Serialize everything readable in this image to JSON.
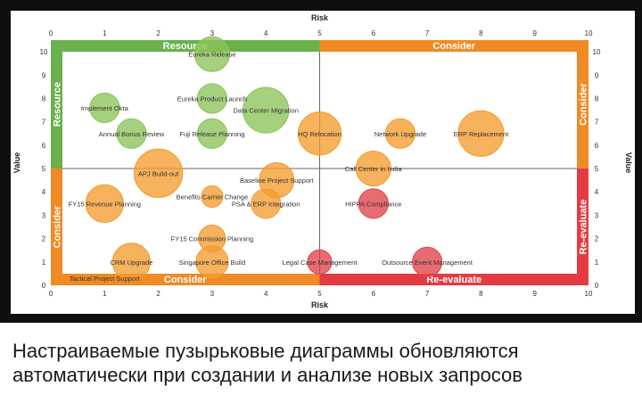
{
  "chart_data": {
    "type": "scatter",
    "subtype": "bubble",
    "xlabel": "Risk",
    "ylabel": "Value",
    "xlim": [
      0,
      10
    ],
    "ylim": [
      0,
      10.5
    ],
    "x_ticks": [
      "0",
      "1",
      "2",
      "3",
      "4",
      "5",
      "6",
      "7",
      "8",
      "9",
      "10"
    ],
    "y_ticks": [
      "0",
      "1",
      "2",
      "3",
      "4",
      "5",
      "6",
      "7",
      "8",
      "9",
      "10"
    ],
    "grid": false,
    "quadrant_dividers": {
      "x": 5,
      "y": 5
    },
    "zone_labels": {
      "top_left": "Resource",
      "top_right": "Consider",
      "bottom_left": "Consider",
      "bottom_right": "Re-evaluate",
      "left_upper": "Resource",
      "left_lower": "Consider",
      "right_upper": "Consider",
      "right_lower": "Re-evaluate"
    },
    "colors": {
      "green": "#8cc35a",
      "orange": "#f39c2e",
      "red": "#e0424a",
      "band_green": "#6ab04c",
      "band_orange": "#f08a24",
      "band_red": "#e33b41"
    },
    "points": [
      {
        "label": "Eureka Release",
        "x": 3.0,
        "y": 9.9,
        "size": 0.65,
        "color": "green"
      },
      {
        "label": "Eureka Product Launch",
        "x": 3.0,
        "y": 8.0,
        "size": 0.55,
        "color": "green"
      },
      {
        "label": "Implement Okta",
        "x": 1.0,
        "y": 7.6,
        "size": 0.55,
        "color": "green"
      },
      {
        "label": "Data Center Migration",
        "x": 4.0,
        "y": 7.5,
        "size": 0.85,
        "color": "green"
      },
      {
        "label": "Annual Bonus Review",
        "x": 1.5,
        "y": 6.5,
        "size": 0.55,
        "color": "green"
      },
      {
        "label": "Fuji Release Planning",
        "x": 3.0,
        "y": 6.5,
        "size": 0.55,
        "color": "green"
      },
      {
        "label": "HQ Relocation",
        "x": 5.0,
        "y": 6.5,
        "size": 0.8,
        "color": "orange"
      },
      {
        "label": "Network Upgrade",
        "x": 6.5,
        "y": 6.5,
        "size": 0.55,
        "color": "orange"
      },
      {
        "label": "ERP Replacement",
        "x": 8.0,
        "y": 6.5,
        "size": 0.85,
        "color": "orange"
      },
      {
        "label": "Call Center in India",
        "x": 6.0,
        "y": 5.0,
        "size": 0.65,
        "color": "orange"
      },
      {
        "label": "APJ Build-out",
        "x": 2.0,
        "y": 4.8,
        "size": 0.9,
        "color": "orange"
      },
      {
        "label": "Baseline Project Support",
        "x": 4.2,
        "y": 4.5,
        "size": 0.65,
        "color": "orange"
      },
      {
        "label": "Benefits Carrier Change",
        "x": 3.0,
        "y": 3.8,
        "size": 0.4,
        "color": "orange"
      },
      {
        "label": "PSA & ERP Integration",
        "x": 4.0,
        "y": 3.5,
        "size": 0.55,
        "color": "orange"
      },
      {
        "label": "FY15 Revenue Planning",
        "x": 1.0,
        "y": 3.5,
        "size": 0.7,
        "color": "orange"
      },
      {
        "label": "HIPPA Compliance",
        "x": 6.0,
        "y": 3.5,
        "size": 0.55,
        "color": "red"
      },
      {
        "label": "FY15 Commission Planning",
        "x": 3.0,
        "y": 2.0,
        "size": 0.5,
        "color": "orange"
      },
      {
        "label": "CRM Upgrade",
        "x": 1.5,
        "y": 1.0,
        "size": 0.7,
        "color": "orange"
      },
      {
        "label": "Singapore Office Build",
        "x": 3.0,
        "y": 1.0,
        "size": 0.6,
        "color": "orange"
      },
      {
        "label": "Legal Case Management",
        "x": 5.0,
        "y": 1.0,
        "size": 0.45,
        "color": "red"
      },
      {
        "label": "Outsource Event Management",
        "x": 7.0,
        "y": 1.0,
        "size": 0.55,
        "color": "red"
      },
      {
        "label": "Tactical Project Support",
        "x": 1.0,
        "y": 0.3,
        "size": 0,
        "color": "orange"
      }
    ]
  },
  "caption": {
    "line1": "Настраиваемые пузырьковые диаграммы обновляются",
    "line2": "автоматически при создании и анализе новых запросов"
  }
}
